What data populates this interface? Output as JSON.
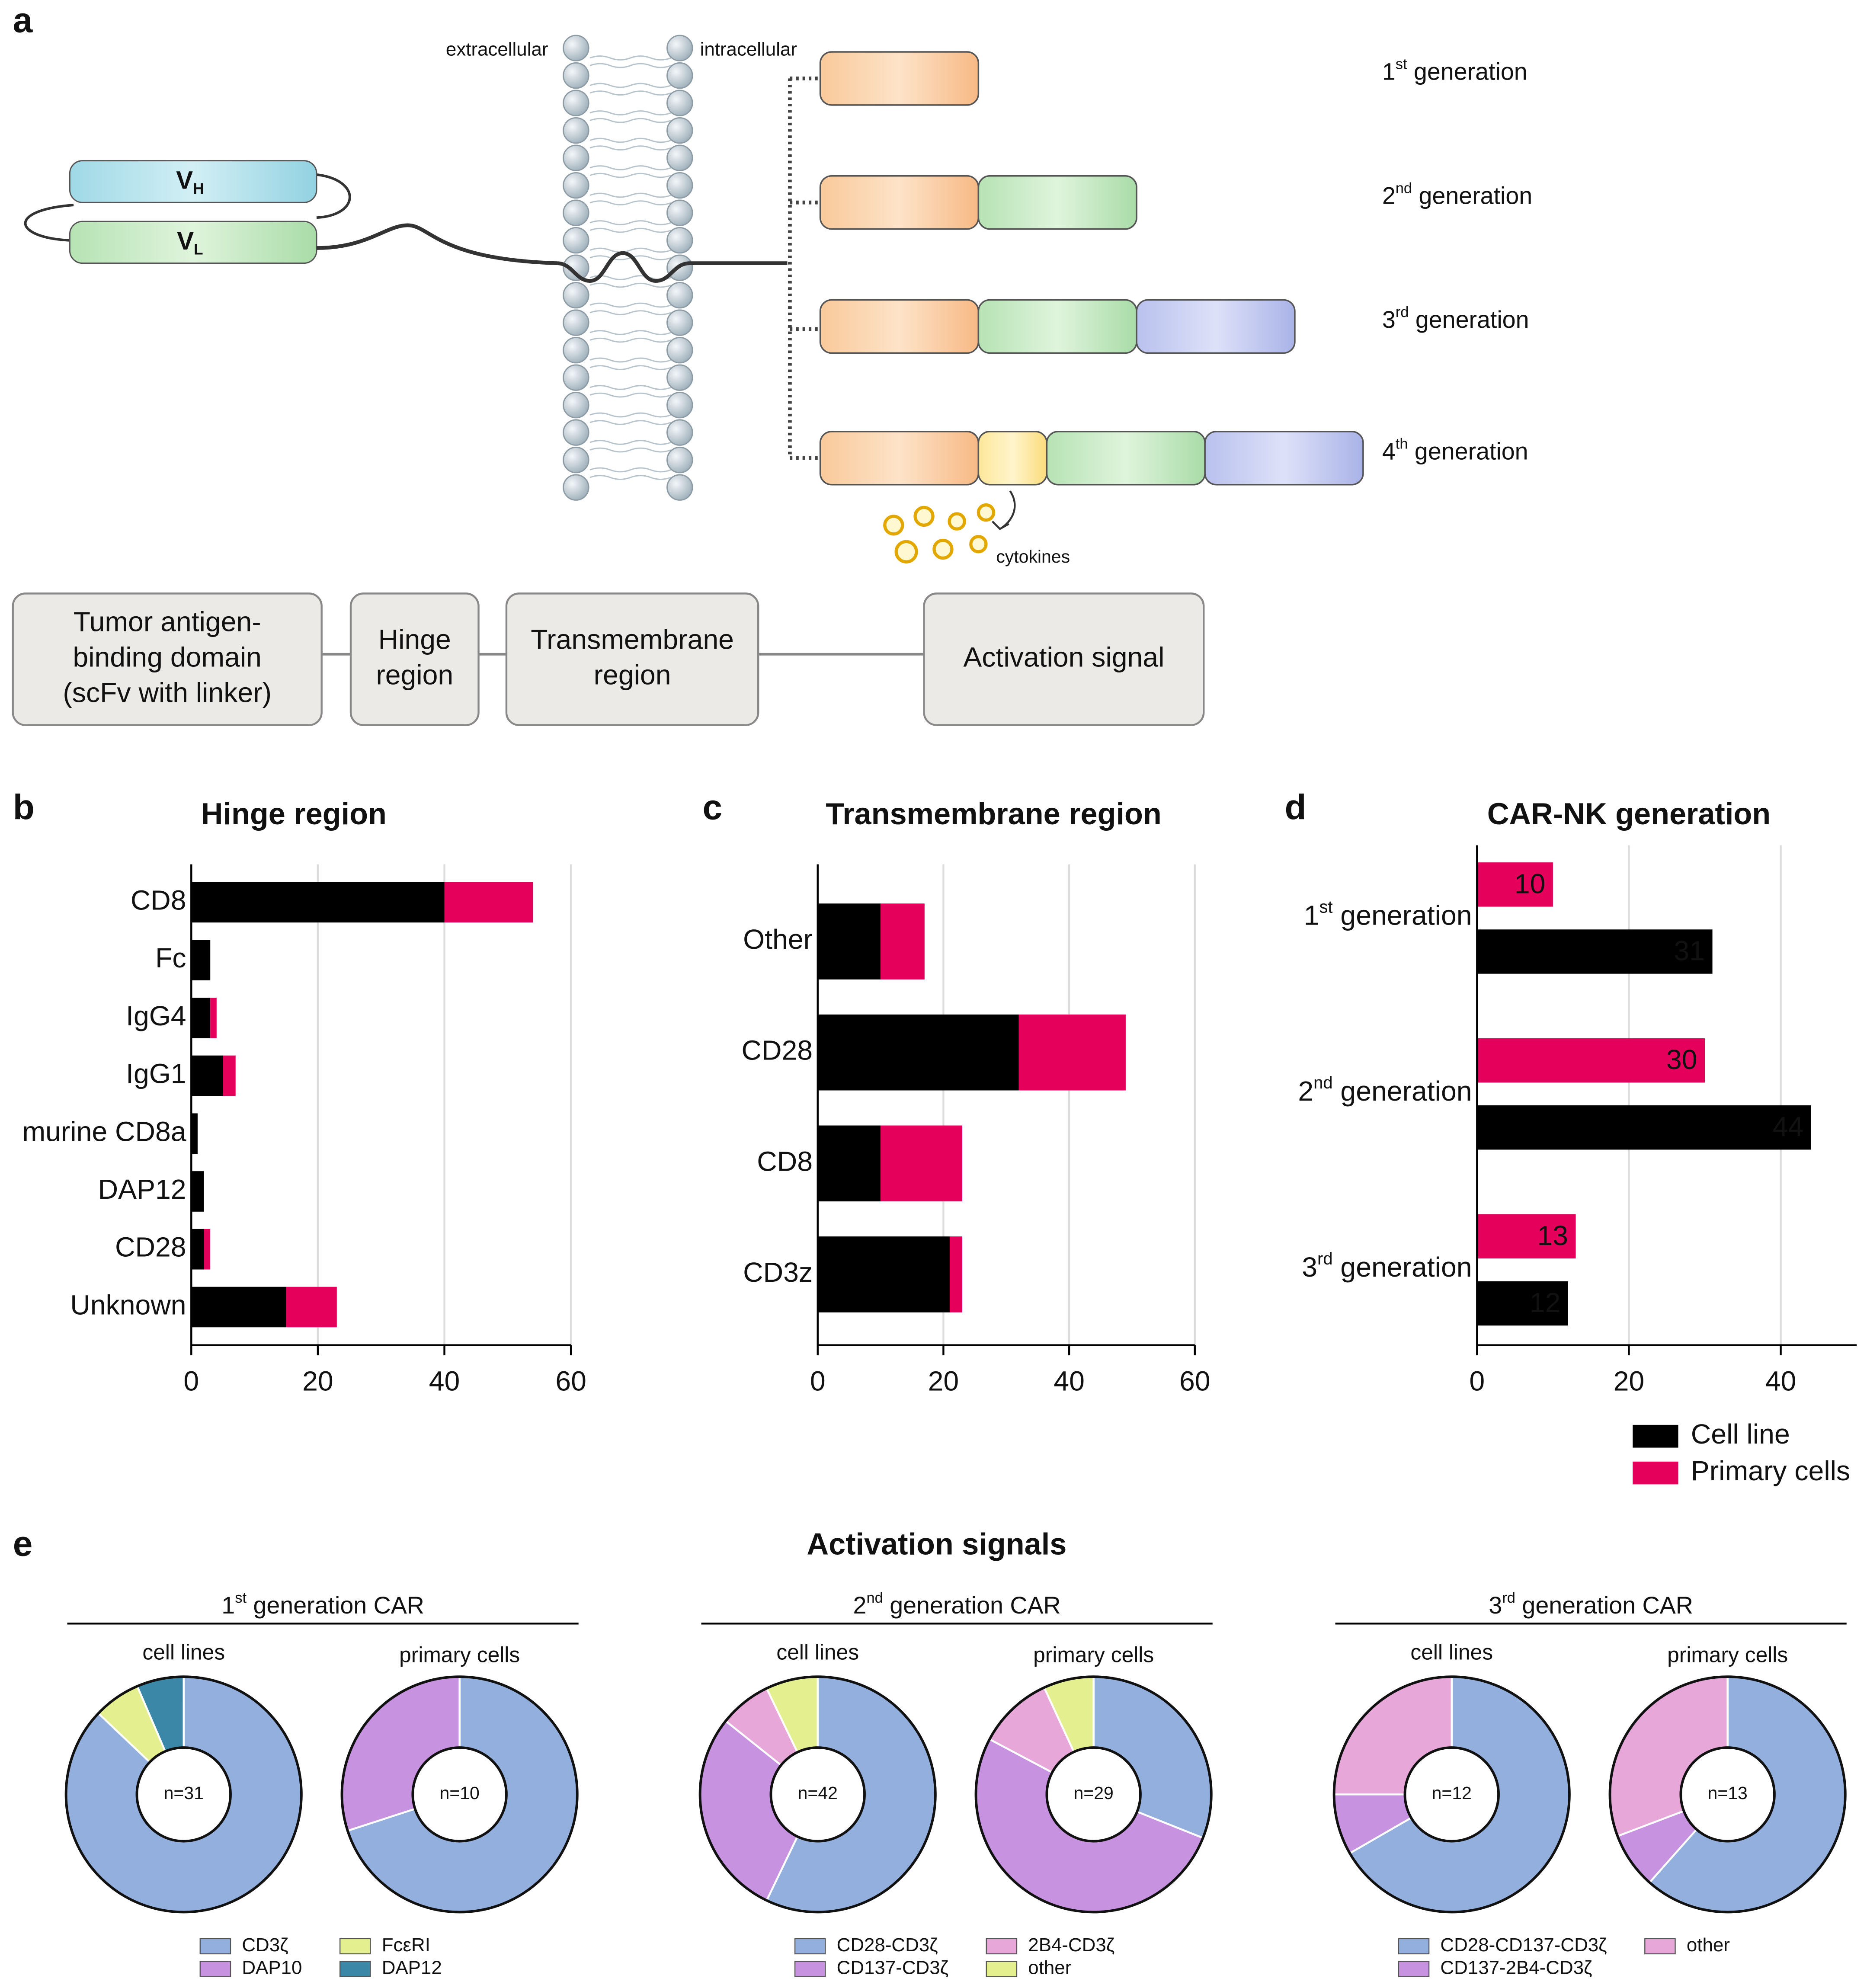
{
  "panel_a": {
    "label": "a",
    "extracellular": "extracellular",
    "intracellular": "intracellular",
    "vh": {
      "main": "V",
      "sub": "H"
    },
    "vl": {
      "main": "V",
      "sub": "L"
    },
    "generations": [
      "1st generation",
      "2nd generation",
      "3rd generation",
      "4th generation"
    ],
    "cytokines": "cytokines",
    "domains": [
      [
        "Tumor antigen-",
        "binding domain",
        "(scFv with linker)"
      ],
      [
        "Hinge",
        "region"
      ],
      [
        "Transmembrane",
        "region"
      ],
      [
        "Activation signal"
      ]
    ]
  },
  "chart_data": [
    {
      "type": "stacked_barh",
      "panel": "b",
      "title": "Hinge region",
      "categories": [
        "CD8",
        "Fc",
        "IgG4",
        "IgG1",
        "murine CD8a",
        "DAP12",
        "CD28",
        "Unknown"
      ],
      "series": [
        {
          "color": "#000000",
          "values": [
            40,
            3,
            3,
            5,
            1,
            2,
            2,
            15
          ]
        },
        {
          "color": "#e5005c",
          "values": [
            14,
            0,
            1,
            2,
            0,
            0,
            1,
            8
          ]
        }
      ],
      "xlim": [
        0,
        60
      ],
      "xticks": [
        0,
        20,
        40,
        60
      ],
      "grid": true
    },
    {
      "type": "stacked_barh",
      "panel": "c",
      "title": "Transmembrane region",
      "categories": [
        "Other",
        "CD28",
        "CD8",
        "CD3z"
      ],
      "series": [
        {
          "color": "#000000",
          "values": [
            10,
            32,
            10,
            21
          ]
        },
        {
          "color": "#e5005c",
          "values": [
            7,
            17,
            13,
            2
          ]
        }
      ],
      "xlim": [
        0,
        60
      ],
      "xticks": [
        0,
        20,
        40,
        60
      ],
      "grid": true
    },
    {
      "type": "grouped_barh",
      "panel": "d",
      "title": "CAR-NK generation",
      "categories": [
        "1st generation",
        "2nd generation",
        "3rd generation"
      ],
      "series": [
        {
          "name": "Cell line",
          "color": "#000000",
          "values": [
            31,
            44,
            12
          ]
        },
        {
          "name": "Primary cells",
          "color": "#e5005c",
          "values": [
            10,
            30,
            13
          ]
        }
      ],
      "xlim": [
        0,
        50
      ],
      "xticks": [
        0,
        20,
        40
      ],
      "grid": true,
      "data_labels": true
    },
    {
      "type": "donut",
      "title": "1st generation CAR",
      "categories": [
        "CD3ζ",
        "DAP10",
        "FcεRI",
        "DAP12"
      ],
      "colors": [
        "#93afde",
        "#c792e0",
        "#e4ef8f",
        "#3a87a8"
      ],
      "pies": [
        {
          "label": "cell lines",
          "n_label": "n=31",
          "values": [
            27,
            0,
            2,
            2
          ]
        },
        {
          "label": "primary cells",
          "n_label": "n=10",
          "values": [
            7,
            3,
            0,
            0
          ]
        }
      ]
    },
    {
      "type": "donut",
      "title": "2nd generation CAR",
      "categories": [
        "CD28-CD3ζ",
        "CD137-CD3ζ",
        "2B4-CD3ζ",
        "other"
      ],
      "colors": [
        "#93afde",
        "#c792e0",
        "#e7a8d9",
        "#e4ef8f"
      ],
      "pies": [
        {
          "label": "cell lines",
          "n_label": "n=42",
          "values": [
            24,
            12,
            3,
            3
          ]
        },
        {
          "label": "primary cells",
          "n_label": "n=29",
          "values": [
            9,
            15,
            3,
            2
          ]
        }
      ]
    },
    {
      "type": "donut",
      "title": "3rd generation CAR",
      "categories": [
        "CD28-CD137-CD3ζ",
        "CD137-2B4-CD3ζ",
        "other"
      ],
      "colors": [
        "#93afde",
        "#c792e0",
        "#e7a8d9"
      ],
      "pies": [
        {
          "label": "cell lines",
          "n_label": "n=12",
          "values": [
            8,
            1,
            3
          ]
        },
        {
          "label": "primary cells",
          "n_label": "n=13",
          "values": [
            8,
            1,
            4
          ]
        }
      ]
    }
  ],
  "panel_e": {
    "label": "e",
    "title": "Activation signals"
  }
}
